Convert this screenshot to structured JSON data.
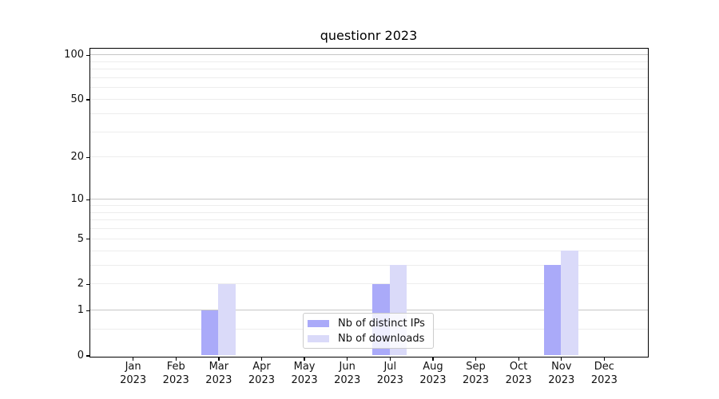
{
  "chart_data": {
    "type": "bar",
    "title": "questionr 2023",
    "categories": [
      "Jan",
      "Feb",
      "Mar",
      "Apr",
      "May",
      "Jun",
      "Jul",
      "Aug",
      "Sep",
      "Oct",
      "Nov",
      "Dec"
    ],
    "x_year": "2023",
    "series": [
      {
        "name": "Nb of distinct IPs",
        "color": "#aaaaf9",
        "values": [
          0,
          0,
          1,
          0,
          0,
          0,
          2,
          0,
          0,
          0,
          3,
          0
        ]
      },
      {
        "name": "Nb of downloads",
        "color": "#dadaf9",
        "values": [
          0,
          0,
          2,
          0,
          0,
          0,
          3,
          0,
          0,
          0,
          4,
          0
        ]
      }
    ],
    "xlabel": "",
    "ylabel": "",
    "y_scale": "log1p",
    "ylim": [
      0,
      113
    ],
    "y_ticks": [
      0,
      1,
      2,
      5,
      10,
      20,
      50,
      100
    ],
    "y_major_gridlines": [
      1,
      10,
      100
    ],
    "y_minor_gridlines": [
      0.5,
      2,
      3,
      4,
      5,
      6,
      7,
      8,
      9,
      20,
      30,
      40,
      50,
      60,
      70,
      80,
      90
    ],
    "grid": "horizontal",
    "legend_position": "lower center"
  }
}
